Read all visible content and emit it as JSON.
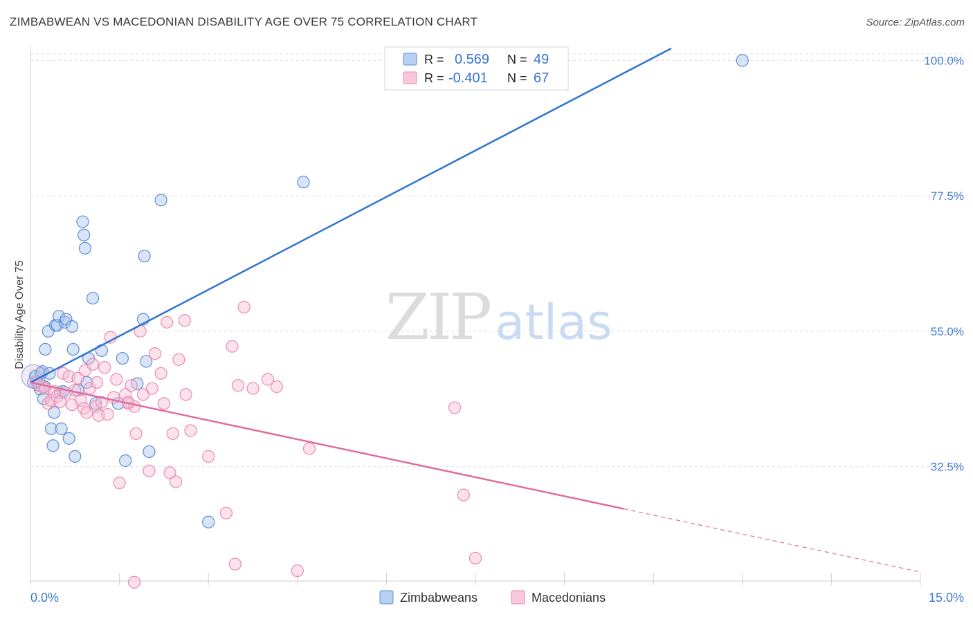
{
  "chart_data": {
    "type": "scatter",
    "title": "ZIMBABWEAN VS MACEDONIAN DISABILITY AGE OVER 75 CORRELATION CHART",
    "source": "Source: ZipAtlas.com",
    "ylabel": "Disability Age Over 75",
    "xlim": [
      0,
      15
    ],
    "ylim": [
      13.5,
      102
    ],
    "x_tick_labels": [
      "0.0%",
      "15.0%"
    ],
    "y_ticks": [
      {
        "value": 100,
        "label": "100.0%"
      },
      {
        "value": 77.5,
        "label": "77.5%"
      },
      {
        "value": 55,
        "label": "55.0%"
      },
      {
        "value": 32.5,
        "label": "32.5%"
      }
    ],
    "grid": true,
    "watermark": {
      "part1": "ZIP",
      "part2": "atlas"
    },
    "legend_top": [
      {
        "r_label": "R =",
        "r_value": "0.569",
        "n_label": "N =",
        "n_value": "49"
      },
      {
        "r_label": "R =",
        "r_value": "-0.401",
        "n_label": "N =",
        "n_value": "67"
      }
    ],
    "series": [
      {
        "name": "Zimbabweans",
        "color": "#5b8ed6",
        "fill": "#aac6ee",
        "line_color": "#2f74d0",
        "trend": {
          "x0": 0,
          "y0": 46.5,
          "x1": 10.8,
          "y1": 102,
          "dashed_from": null
        },
        "points": [
          [
            0.05,
            46.5
          ],
          [
            0.08,
            47.5
          ],
          [
            0.1,
            47.6
          ],
          [
            0.12,
            46.5
          ],
          [
            0.14,
            46.0
          ],
          [
            0.16,
            45.4
          ],
          [
            0.18,
            48.0
          ],
          [
            0.2,
            48.3
          ],
          [
            0.22,
            43.8
          ],
          [
            0.24,
            45.8
          ],
          [
            0.25,
            52.0
          ],
          [
            0.3,
            55.0
          ],
          [
            0.32,
            48.0
          ],
          [
            0.35,
            38.8
          ],
          [
            0.38,
            36.0
          ],
          [
            0.4,
            41.5
          ],
          [
            0.42,
            56.0
          ],
          [
            0.45,
            56.0
          ],
          [
            0.48,
            57.5
          ],
          [
            0.5,
            44.8
          ],
          [
            0.52,
            38.8
          ],
          [
            0.55,
            45.0
          ],
          [
            0.58,
            56.5
          ],
          [
            0.6,
            57.0
          ],
          [
            0.65,
            37.2
          ],
          [
            0.7,
            55.8
          ],
          [
            0.72,
            52.0
          ],
          [
            0.75,
            34.2
          ],
          [
            0.8,
            45.2
          ],
          [
            0.88,
            73.2
          ],
          [
            0.9,
            71.0
          ],
          [
            0.92,
            68.8
          ],
          [
            0.95,
            46.5
          ],
          [
            0.98,
            50.5
          ],
          [
            1.05,
            60.5
          ],
          [
            1.1,
            43.0
          ],
          [
            1.2,
            51.8
          ],
          [
            1.48,
            43.0
          ],
          [
            1.55,
            50.5
          ],
          [
            1.6,
            33.5
          ],
          [
            1.8,
            46.3
          ],
          [
            1.9,
            57.0
          ],
          [
            1.92,
            67.5
          ],
          [
            1.95,
            50.0
          ],
          [
            2.0,
            35.0
          ],
          [
            2.2,
            76.8
          ],
          [
            3.0,
            23.3
          ],
          [
            4.6,
            79.8
          ],
          [
            12.0,
            100.0
          ]
        ]
      },
      {
        "name": "Macedonians",
        "color": "#ea8ab0",
        "fill": "#f6bfd4",
        "line_color": "#e06c9e",
        "trend": {
          "x0": 0,
          "y0": 46.5,
          "x1": 15,
          "y1": 15.0,
          "dashed_from": 10.0
        },
        "points": [
          [
            0.1,
            46.5
          ],
          [
            0.15,
            46.0
          ],
          [
            0.2,
            45.8
          ],
          [
            0.25,
            45.5
          ],
          [
            0.3,
            43.0
          ],
          [
            0.35,
            43.5
          ],
          [
            0.4,
            45.0
          ],
          [
            0.45,
            44.2
          ],
          [
            0.5,
            43.3
          ],
          [
            0.55,
            48.0
          ],
          [
            0.6,
            44.8
          ],
          [
            0.65,
            47.5
          ],
          [
            0.7,
            42.8
          ],
          [
            0.75,
            45.2
          ],
          [
            0.8,
            47.2
          ],
          [
            0.85,
            43.5
          ],
          [
            0.9,
            42.2
          ],
          [
            0.92,
            48.5
          ],
          [
            0.95,
            41.5
          ],
          [
            1.0,
            45.5
          ],
          [
            1.05,
            49.5
          ],
          [
            1.1,
            42.5
          ],
          [
            1.12,
            46.5
          ],
          [
            1.15,
            41.0
          ],
          [
            1.2,
            43.2
          ],
          [
            1.25,
            49.0
          ],
          [
            1.3,
            41.2
          ],
          [
            1.35,
            54.0
          ],
          [
            1.4,
            44.0
          ],
          [
            1.45,
            47.0
          ],
          [
            1.5,
            29.8
          ],
          [
            1.6,
            44.5
          ],
          [
            1.65,
            43.0
          ],
          [
            1.7,
            46.0
          ],
          [
            1.75,
            42.5
          ],
          [
            1.78,
            38.0
          ],
          [
            1.85,
            55.0
          ],
          [
            1.9,
            44.5
          ],
          [
            2.0,
            31.8
          ],
          [
            2.05,
            45.5
          ],
          [
            2.1,
            51.3
          ],
          [
            2.2,
            48.0
          ],
          [
            2.25,
            43.0
          ],
          [
            2.3,
            56.5
          ],
          [
            2.35,
            31.5
          ],
          [
            2.4,
            38.0
          ],
          [
            2.45,
            30.0
          ],
          [
            2.5,
            50.3
          ],
          [
            2.6,
            56.8
          ],
          [
            2.62,
            44.5
          ],
          [
            2.7,
            38.5
          ],
          [
            3.0,
            34.2
          ],
          [
            3.3,
            24.8
          ],
          [
            3.4,
            52.5
          ],
          [
            3.45,
            16.3
          ],
          [
            3.5,
            46.0
          ],
          [
            3.6,
            59.0
          ],
          [
            3.75,
            45.5
          ],
          [
            4.0,
            47.0
          ],
          [
            4.15,
            45.8
          ],
          [
            4.5,
            15.2
          ],
          [
            4.7,
            35.5
          ],
          [
            7.15,
            42.3
          ],
          [
            7.3,
            27.8
          ],
          [
            7.5,
            17.3
          ],
          [
            1.75,
            13.3
          ],
          [
            1.65,
            43.2
          ]
        ]
      }
    ]
  }
}
